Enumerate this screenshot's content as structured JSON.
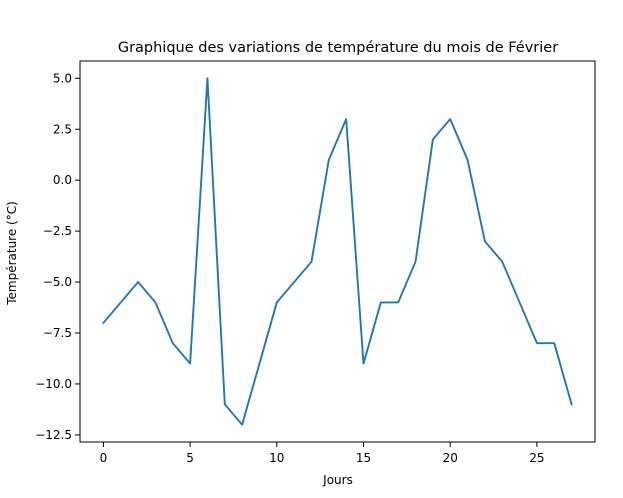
{
  "chart_data": {
    "type": "line",
    "title": "Graphique des variations de température du mois de Février",
    "xlabel": "Jours",
    "ylabel": "Température (°C)",
    "xlim": [
      -1.35,
      28.35
    ],
    "ylim": [
      -12.85,
      5.85
    ],
    "x_ticks": [
      0,
      5,
      10,
      15,
      20,
      25
    ],
    "x_tick_labels": [
      "0",
      "5",
      "10",
      "15",
      "20",
      "25"
    ],
    "y_ticks": [
      5.0,
      2.5,
      0.0,
      -2.5,
      -5.0,
      -7.5,
      -10.0,
      -12.5
    ],
    "y_tick_labels": [
      "5.0",
      "2.5",
      "0.0",
      "−2.5",
      "−5.0",
      "−7.5",
      "−10.0",
      "−12.5"
    ],
    "grid": false,
    "colors": {
      "line": "#1f77b4",
      "axes": "#000000",
      "background": "#ffffff"
    },
    "series": [
      {
        "x": [
          0,
          1,
          2,
          3,
          4,
          5,
          6,
          7,
          8,
          9,
          10,
          11,
          12,
          13,
          14,
          15,
          16,
          17,
          18,
          19,
          20,
          21,
          22,
          23,
          24,
          25,
          26,
          27
        ],
        "values": [
          -7,
          -6,
          -5,
          -6,
          -8,
          -9,
          5,
          -11,
          -12,
          -9,
          -6,
          -5,
          -4,
          1,
          3,
          -9,
          -6,
          -6,
          -4,
          2,
          3,
          1,
          -3,
          -4,
          -6,
          -8,
          -8,
          -11
        ]
      }
    ]
  }
}
